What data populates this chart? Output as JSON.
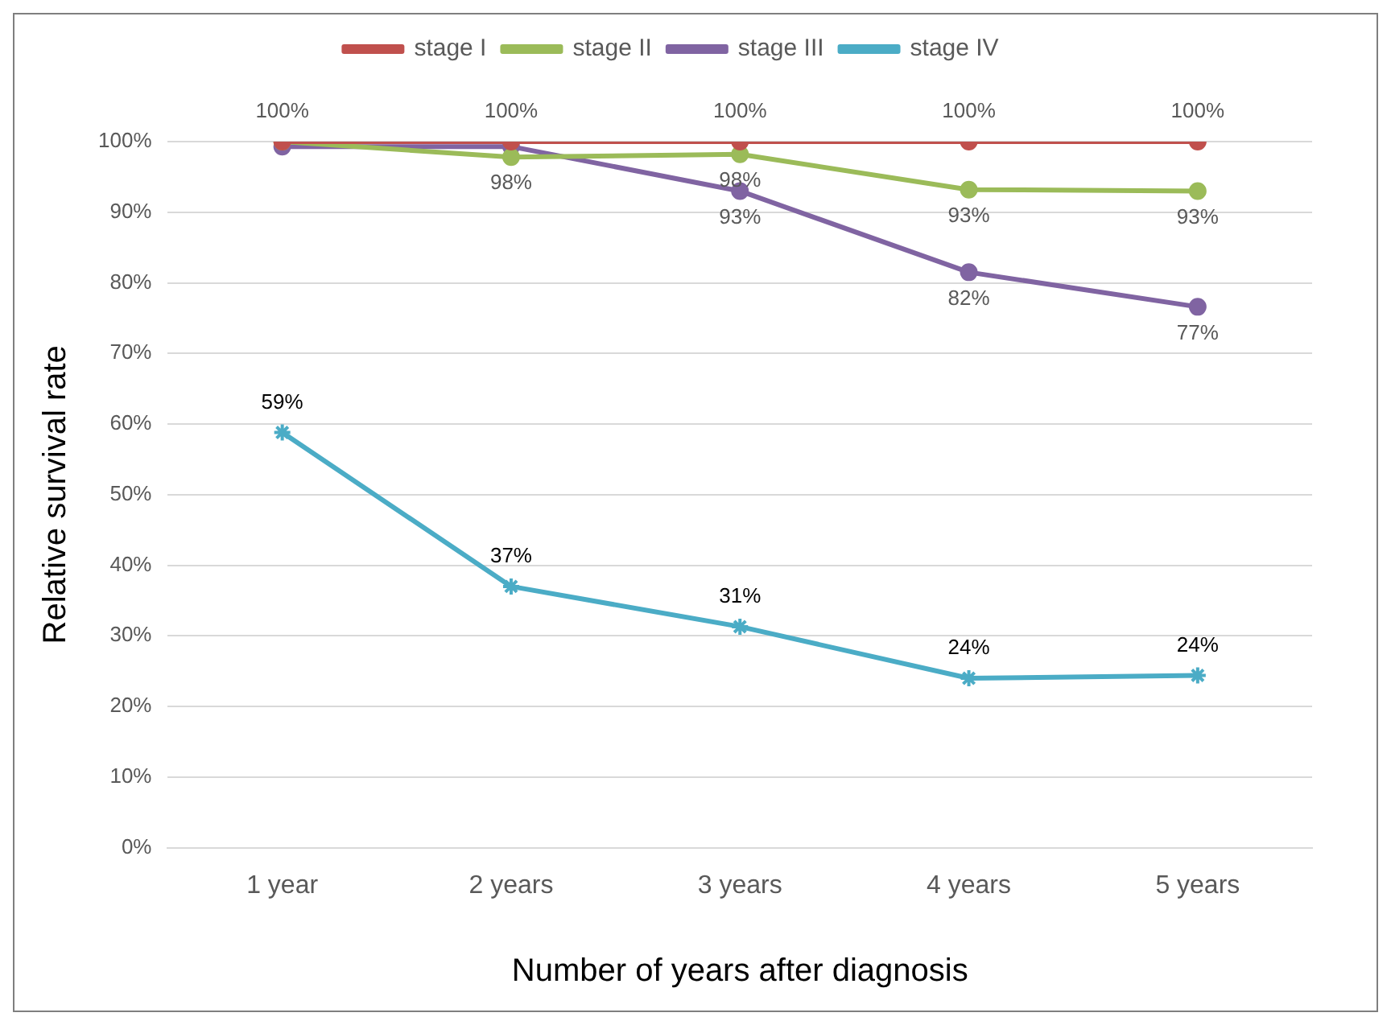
{
  "chart_data": {
    "type": "line",
    "xlabel": "Number of years after diagnosis",
    "ylabel": "Relative survival rate",
    "categories": [
      "1 year",
      "2 years",
      "3 years",
      "4 years",
      "5 years"
    ],
    "series": [
      {
        "name": "stage I",
        "color": "#c0504d",
        "marker": "circle",
        "values": [
          100,
          100,
          100,
          100,
          100
        ],
        "value_labels": [
          "100%",
          "100%",
          "100%",
          "100%",
          "100%"
        ]
      },
      {
        "name": "stage II",
        "color": "#9bbb59",
        "marker": "circle",
        "values": [
          100,
          97.8,
          98.2,
          93.2,
          93
        ],
        "value_labels": [
          null,
          "98%",
          "98%",
          "93%",
          "93%"
        ]
      },
      {
        "name": "stage III",
        "color": "#8064a2",
        "marker": "circle",
        "values": [
          99.3,
          99.3,
          93,
          81.5,
          76.6
        ],
        "value_labels": [
          null,
          null,
          "93%",
          "82%",
          "77%"
        ]
      },
      {
        "name": "stage IV",
        "color": "#4bacc6",
        "marker": "cross",
        "values": [
          58.8,
          37,
          31.3,
          24,
          24.4
        ],
        "value_labels": [
          "59%",
          "37%",
          "31%",
          "24%",
          "24%"
        ]
      }
    ],
    "ylim": [
      0,
      100
    ],
    "yticks": [
      {
        "value": 0,
        "label": "0%"
      },
      {
        "value": 10,
        "label": "10%"
      },
      {
        "value": 20,
        "label": "20%"
      },
      {
        "value": 30,
        "label": "30%"
      },
      {
        "value": 40,
        "label": "40%"
      },
      {
        "value": 50,
        "label": "50%"
      },
      {
        "value": 60,
        "label": "60%"
      },
      {
        "value": 70,
        "label": "70%"
      },
      {
        "value": 80,
        "label": "80%"
      },
      {
        "value": 90,
        "label": "90%"
      },
      {
        "value": 100,
        "label": "100%"
      }
    ],
    "grid": "y",
    "legend": "top",
    "line_style": "solid"
  }
}
